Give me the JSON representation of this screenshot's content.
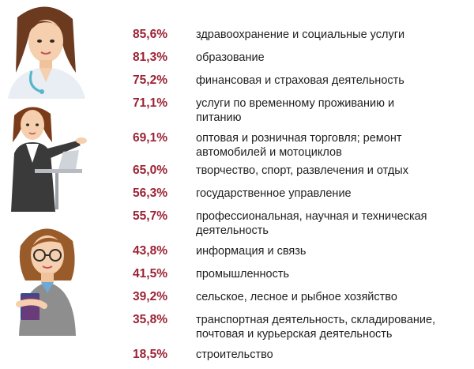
{
  "accent_color": "#9b2335",
  "illustrations": [
    "doctor-woman-icon",
    "presenter-woman-icon",
    "teacher-woman-icon"
  ],
  "rows": [
    {
      "percent": "85,6%",
      "label": "здравоохранение и социальные услуги"
    },
    {
      "percent": "81,3%",
      "label": "образование"
    },
    {
      "percent": "75,2%",
      "label": "финансовая и страховая деятельность"
    },
    {
      "percent": "71,1%",
      "label": "услуги по временному проживанию и питанию"
    },
    {
      "percent": "69,1%",
      "label": "оптовая и розничная торговля; ремонт автомобилей и мотоциклов"
    },
    {
      "percent": "65,0%",
      "label": "творчество, спорт, развлечения и отдых"
    },
    {
      "percent": "56,3%",
      "label": "государственное управление"
    },
    {
      "percent": "55,7%",
      "label": "профессиональная, научная и техническая деятельность"
    },
    {
      "percent": "43,8%",
      "label": "информация и связь"
    },
    {
      "percent": "41,5%",
      "label": "промышленность"
    },
    {
      "percent": "39,2%",
      "label": "сельское, лесное и рыбное хозяйство"
    },
    {
      "percent": "35,8%",
      "label": "транспортная деятельность, складирование, почтовая и курьерская деятельность"
    },
    {
      "percent": "18,5%",
      "label": "строительство"
    }
  ]
}
